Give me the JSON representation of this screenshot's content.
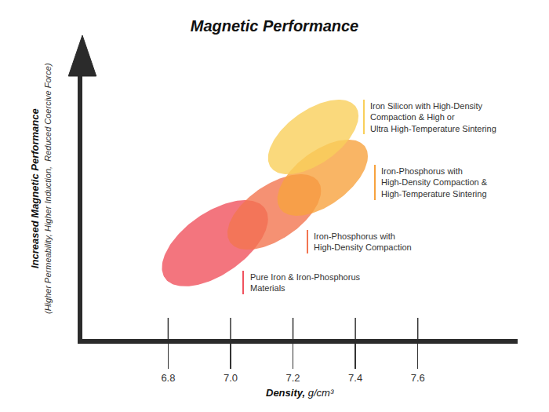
{
  "chart_data": {
    "type": "region",
    "title": "Magnetic Performance",
    "xlabel": "Density, g/cm³",
    "ylabel": "Increased Magnetic Performance",
    "ylabel_detail": "(Higher Permeability, Higher Induction,  Reduced Coercive Force)",
    "xlim": [
      6.525,
      7.92
    ],
    "xticks": [
      6.8,
      {
        "value": 7,
        "label": "7.0"
      },
      7.2,
      7.4,
      7.6
    ],
    "ylim": [
      0,
      10
    ],
    "tick_labels": "x",
    "grid": false,
    "series": [
      {
        "name": "Pure Iron & Iron-Phosphorus\nMaterials",
        "color": "#f0525e",
        "x_range": [
          6.78,
          7.12
        ],
        "y_range": [
          1.99,
          5.25
        ]
      },
      {
        "name": "Iron-Phosphorus with\nHigh-Density Compaction",
        "color": "#f27550",
        "x_range": [
          6.99,
          7.29
        ],
        "y_range": [
          3.38,
          6.23
        ]
      },
      {
        "name": "Iron-Phosphorus with\nHigh-Density Compaction &\nHigh-Temperature Sintering",
        "color": "#f7a23e",
        "x_range": [
          7.15,
          7.44
        ],
        "y_range": [
          4.66,
          7.54
        ]
      },
      {
        "name": "Iron Silicon with High-Density\nCompaction & High or\nUltra High-Temperature Sintering",
        "color": "#f9cf5b",
        "x_range": [
          7.12,
          7.41
        ],
        "y_range": [
          6.23,
          9.05
        ]
      }
    ]
  }
}
